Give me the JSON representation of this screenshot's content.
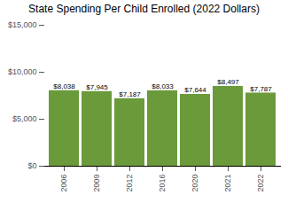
{
  "chart_data": {
    "type": "bar",
    "title": "State Spending Per Child Enrolled (2022 Dollars)",
    "categories": [
      "2006",
      "2009",
      "2012",
      "2016",
      "2020",
      "2021",
      "2022"
    ],
    "values": [
      8038,
      7945,
      7187,
      8033,
      7644,
      8497,
      7787
    ],
    "value_labels": [
      "$8,038",
      "$7,945",
      "$7,187",
      "$8,033",
      "$7,644",
      "$8,497",
      "$7,787"
    ],
    "color": "#6a9a3a",
    "ylim": [
      0,
      15000
    ],
    "yticks": [
      {
        "value": 0,
        "label": "$0"
      },
      {
        "value": 5000,
        "label": "$5,000"
      },
      {
        "value": 10000,
        "label": "$10,000"
      },
      {
        "value": 15000,
        "label": "$15,000"
      }
    ],
    "grid": false,
    "data_labels": true
  }
}
